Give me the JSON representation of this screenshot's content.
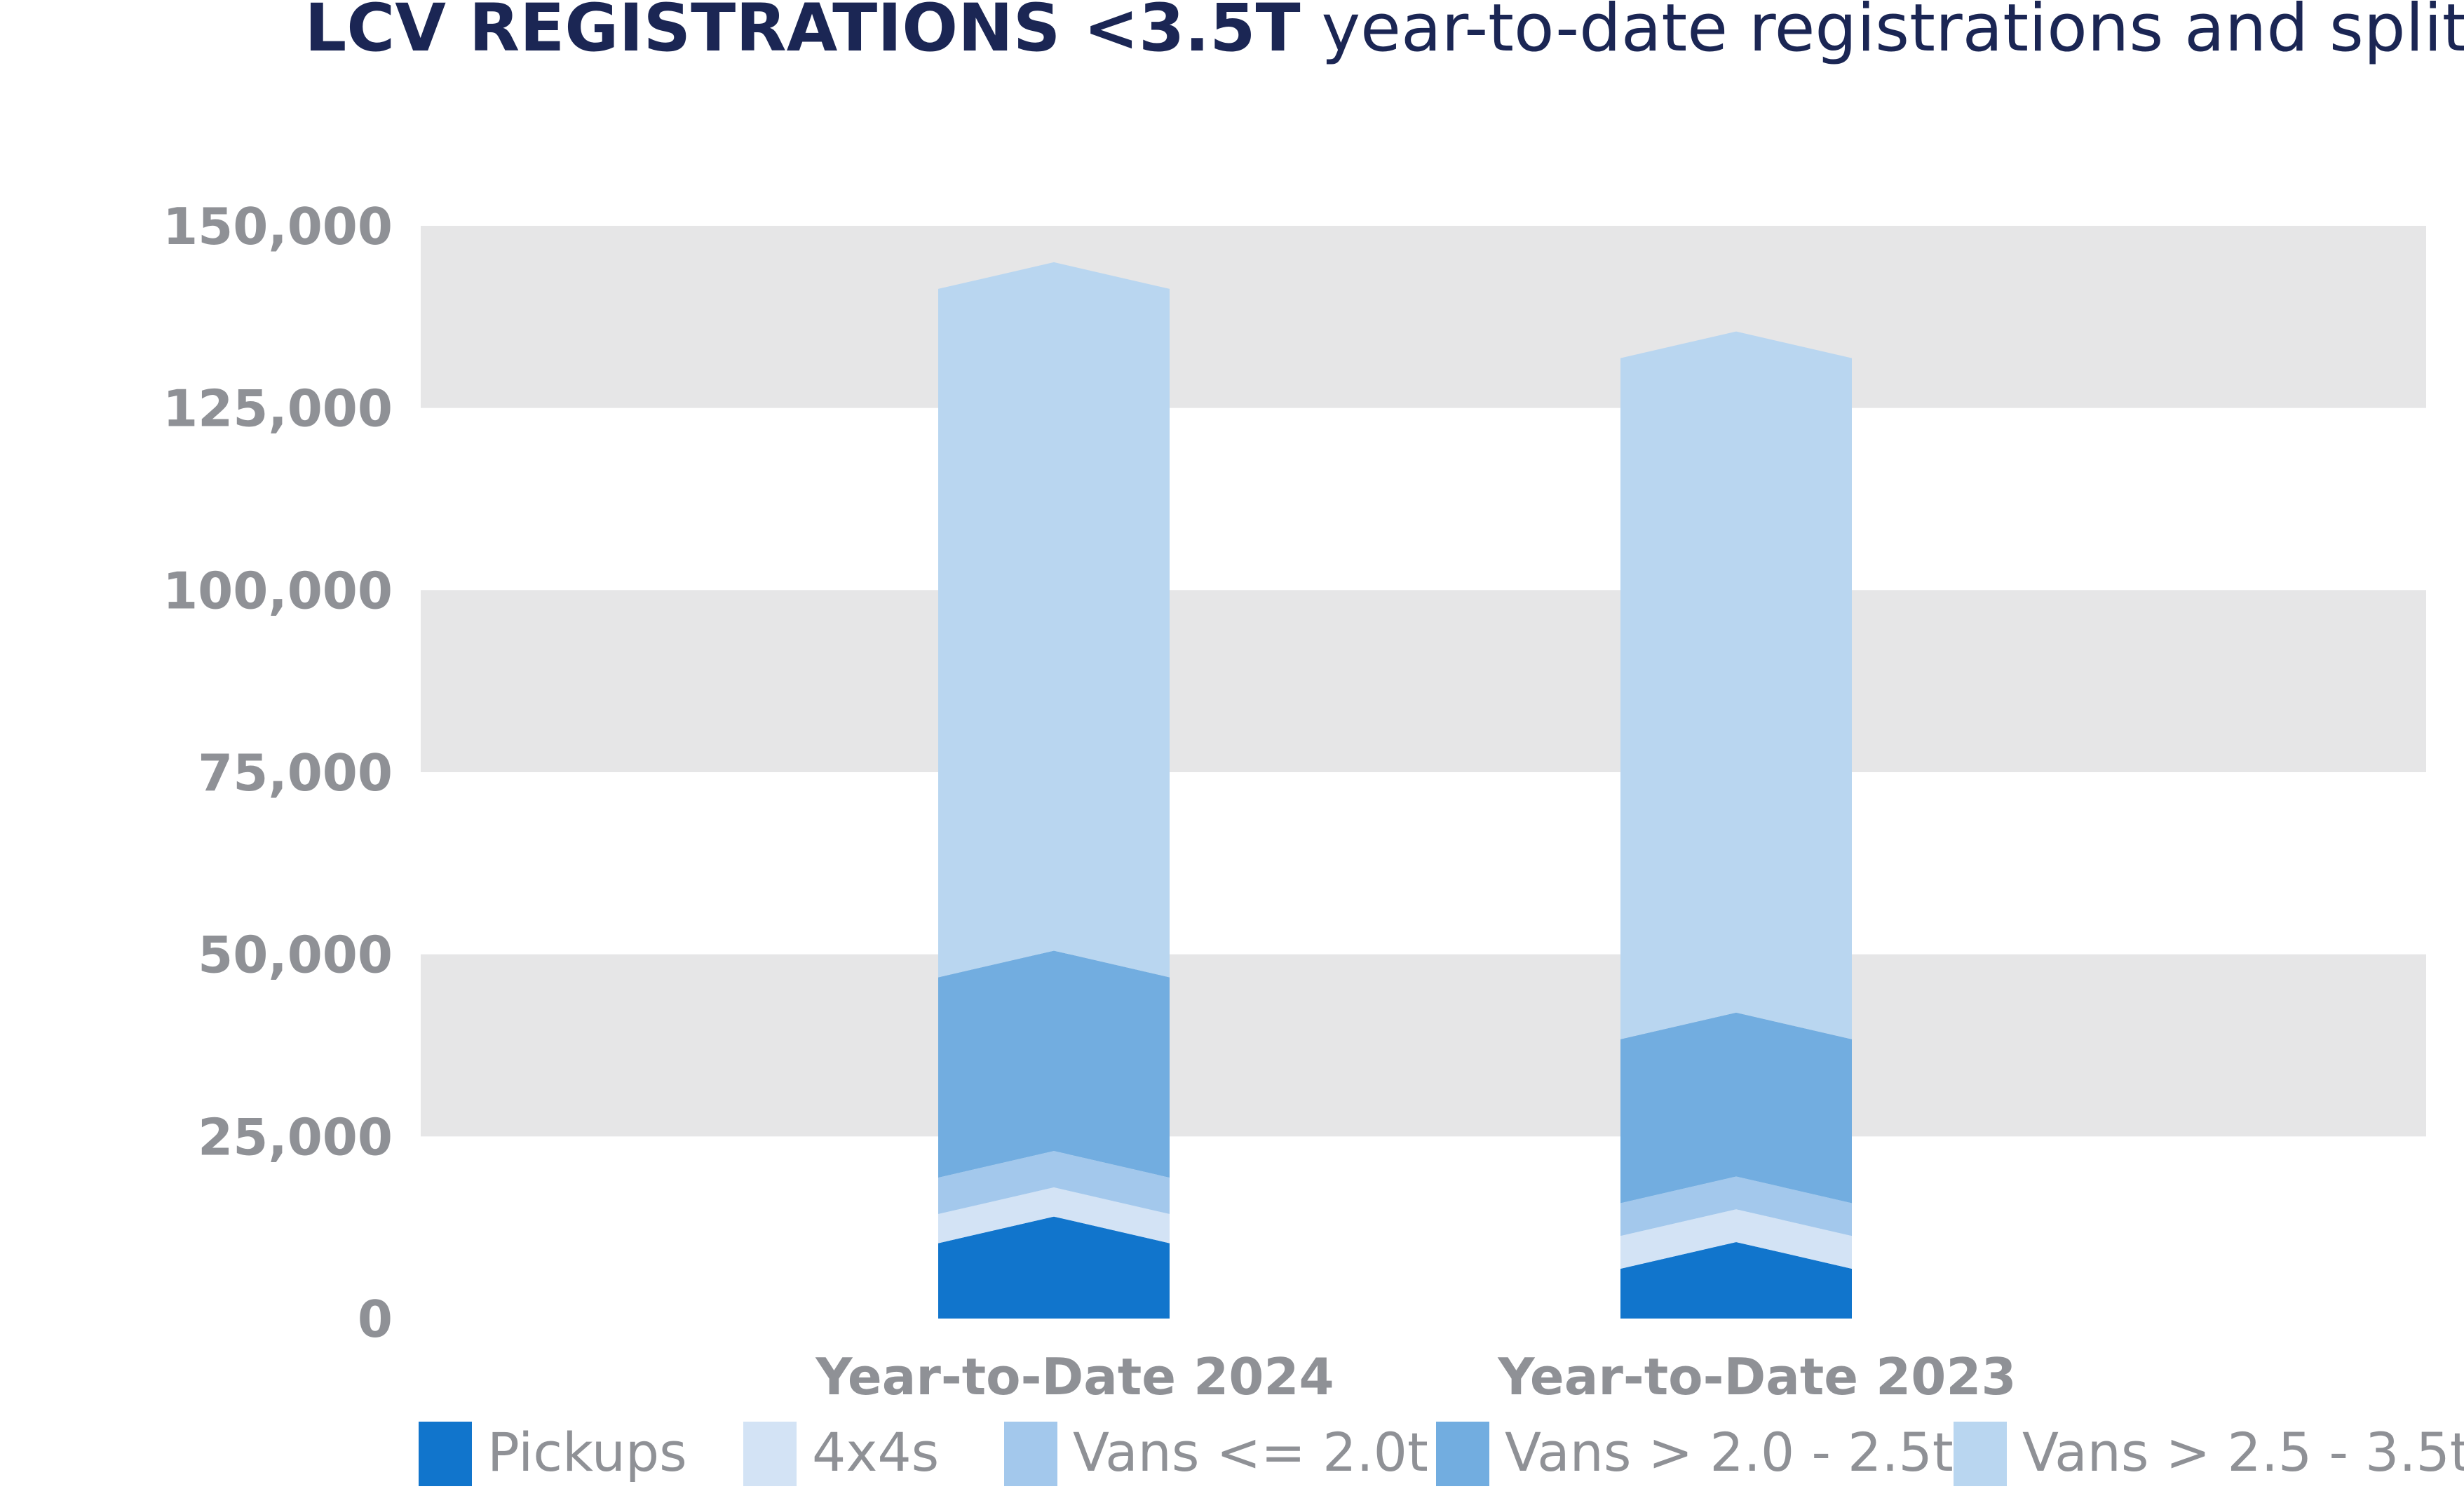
{
  "chart_data": {
    "type": "bar",
    "stacked": true,
    "title": "LCV REGISTRATIONS <3.5T",
    "subtitle": "year-to-date registrations and split",
    "xlabel": "",
    "ylabel": "",
    "categories": [
      "Year-to-Date 2024",
      "Year-to-Date 2023"
    ],
    "ylim": [
      0,
      150000
    ],
    "yticks": [
      0,
      25000,
      50000,
      75000,
      100000,
      125000,
      150000
    ],
    "ytick_labels": [
      "0",
      "25,000",
      "50,000",
      "75,000",
      "100,000",
      "125,000",
      "150,000"
    ],
    "grid": "alternating horizontal bands",
    "legend_position": "bottom",
    "series": [
      {
        "name": "Pickups",
        "color": "#1175cc",
        "values": [
          14000,
          10500
        ]
      },
      {
        "name": "4x4s",
        "color": "#d3e3f5",
        "values": [
          4000,
          4500
        ]
      },
      {
        "name": "Vans <= 2.0t",
        "color": "#a3c8ec",
        "values": [
          5000,
          4500
        ]
      },
      {
        "name": "Vans > 2.0 - 2.5t",
        "color": "#72ade0",
        "values": [
          27500,
          22500
        ]
      },
      {
        "name": "Vans > 2.5 - 3.5t",
        "color": "#b9d6f0",
        "values": [
          94500,
          93500
        ]
      }
    ]
  }
}
